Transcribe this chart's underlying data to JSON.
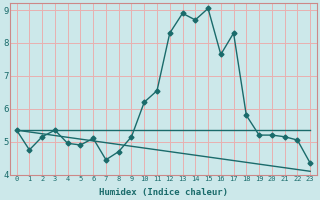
{
  "title": "",
  "xlabel": "Humidex (Indice chaleur)",
  "xlim": [
    -0.5,
    23.5
  ],
  "ylim": [
    4,
    9.2
  ],
  "yticks": [
    4,
    5,
    6,
    7,
    8,
    9
  ],
  "xticks": [
    0,
    1,
    2,
    3,
    4,
    5,
    6,
    7,
    8,
    9,
    10,
    11,
    12,
    13,
    14,
    15,
    16,
    17,
    18,
    19,
    20,
    21,
    22,
    23
  ],
  "background_color": "#cce8ea",
  "grid_color": "#e8b0b0",
  "line_color": "#1a6b6b",
  "border_color": "#cc8888",
  "line1_x": [
    0,
    1,
    2,
    3,
    4,
    5,
    6,
    7,
    8,
    9,
    10,
    11,
    12,
    13,
    14,
    15,
    16,
    17,
    18,
    19,
    20,
    21,
    22,
    23
  ],
  "line1_y": [
    5.35,
    4.75,
    5.15,
    5.35,
    4.95,
    4.9,
    5.1,
    4.45,
    4.7,
    5.15,
    6.2,
    6.55,
    8.3,
    8.9,
    8.7,
    9.05,
    7.65,
    8.3,
    5.8,
    5.2,
    5.2,
    5.15,
    5.05,
    4.35
  ],
  "line2_x": [
    0,
    23
  ],
  "line2_y": [
    5.35,
    5.35
  ],
  "line3_x": [
    0,
    23
  ],
  "line3_y": [
    5.35,
    4.1
  ]
}
